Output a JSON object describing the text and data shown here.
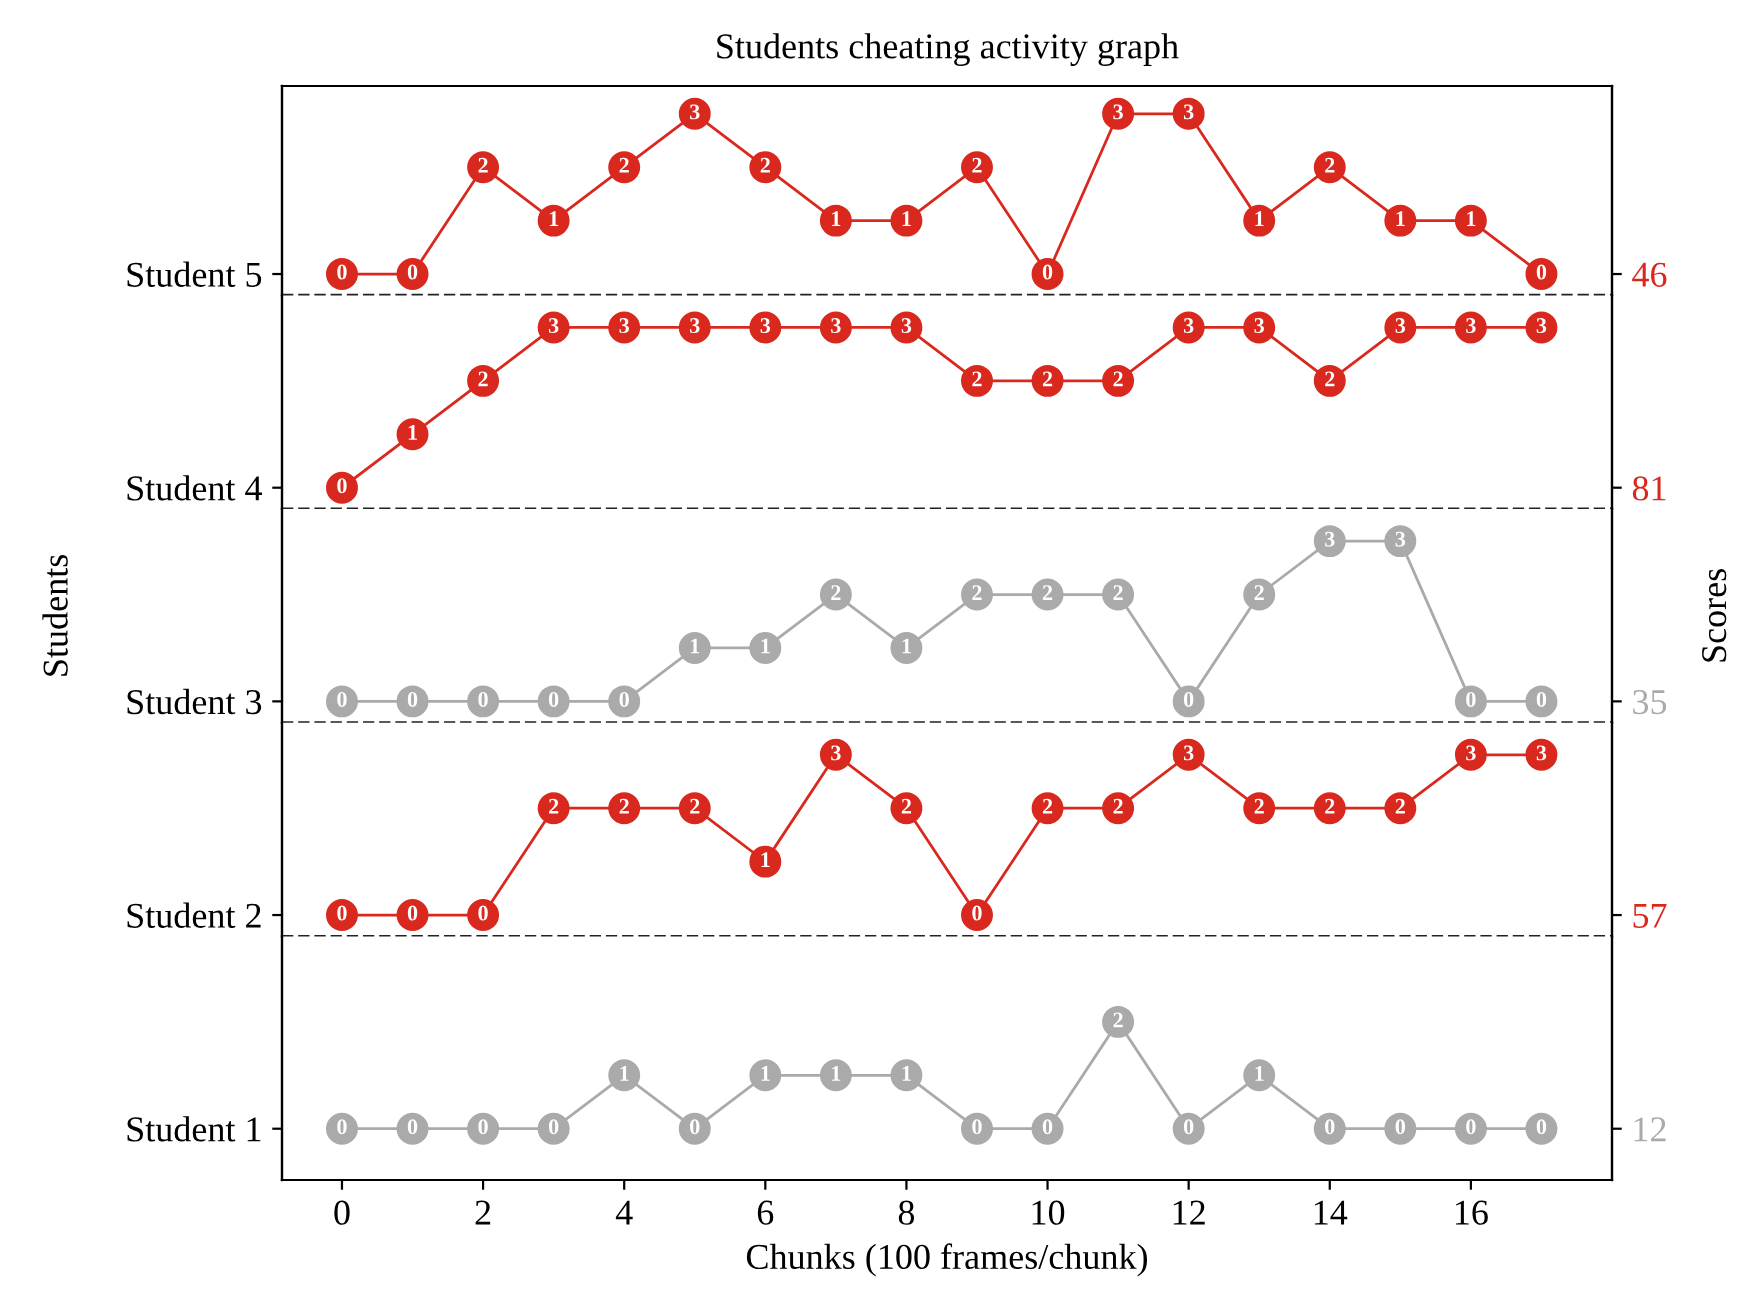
{
  "chart_data": [
    {
      "type": "line",
      "title": "Students cheating activity graph",
      "x": [
        0,
        1,
        2,
        3,
        4,
        5,
        6,
        7,
        8,
        9,
        10,
        11,
        12,
        13,
        14,
        15,
        16,
        17
      ],
      "xlim": [
        -0.85,
        18.0
      ],
      "ylim": [
        -0.4,
        3.52
      ],
      "tick_labels": false,
      "marker": "circle",
      "line_style": "solid",
      "data_labels": true,
      "annotations": [
        "Student 5",
        "46"
      ],
      "series": [
        {
          "color": "#d9281e",
          "values": [
            0,
            0,
            2,
            1,
            2,
            3,
            2,
            1,
            1,
            2,
            0,
            3,
            3,
            1,
            2,
            1,
            1,
            0
          ]
        }
      ],
      "ref_lines": [
        {
          "axis": "y",
          "value": -0.4,
          "line_style": "dashed",
          "color": "#222222"
        }
      ]
    },
    {
      "type": "line",
      "x": [
        0,
        1,
        2,
        3,
        4,
        5,
        6,
        7,
        8,
        9,
        10,
        11,
        12,
        13,
        14,
        15,
        16,
        17
      ],
      "xlim": [
        -0.85,
        18.0
      ],
      "ylim": [
        -0.4,
        3.6
      ],
      "tick_labels": false,
      "marker": "circle",
      "line_style": "solid",
      "data_labels": true,
      "annotations": [
        "Student 4",
        "81"
      ],
      "series": [
        {
          "color": "#d9281e",
          "values": [
            0,
            1,
            2,
            3,
            3,
            3,
            3,
            3,
            3,
            2,
            2,
            2,
            3,
            3,
            2,
            3,
            3,
            3
          ]
        }
      ],
      "ref_lines": [
        {
          "axis": "y",
          "value": -0.4,
          "line_style": "dashed",
          "color": "#222222"
        }
      ]
    },
    {
      "type": "line",
      "ylabel": "Students",
      "y2label": "Scores",
      "x": [
        0,
        1,
        2,
        3,
        4,
        5,
        6,
        7,
        8,
        9,
        10,
        11,
        12,
        13,
        14,
        15,
        16,
        17
      ],
      "xlim": [
        -0.85,
        18.0
      ],
      "ylim": [
        -0.4,
        3.6
      ],
      "tick_labels": false,
      "marker": "circle",
      "line_style": "solid",
      "data_labels": true,
      "annotations": [
        "Student 3",
        "35"
      ],
      "series": [
        {
          "color": "#aaaaaa",
          "values": [
            0,
            0,
            0,
            0,
            0,
            1,
            1,
            2,
            1,
            2,
            2,
            2,
            0,
            2,
            3,
            3,
            0,
            0
          ]
        }
      ],
      "ref_lines": [
        {
          "axis": "y",
          "value": -0.4,
          "line_style": "dashed",
          "color": "#222222"
        }
      ]
    },
    {
      "type": "line",
      "x": [
        0,
        1,
        2,
        3,
        4,
        5,
        6,
        7,
        8,
        9,
        10,
        11,
        12,
        13,
        14,
        15,
        16,
        17
      ],
      "xlim": [
        -0.85,
        18.0
      ],
      "ylim": [
        -0.4,
        3.6
      ],
      "tick_labels": false,
      "marker": "circle",
      "line_style": "solid",
      "data_labels": true,
      "annotations": [
        "Student 2",
        "57"
      ],
      "series": [
        {
          "color": "#d9281e",
          "values": [
            0,
            0,
            0,
            2,
            2,
            2,
            1,
            3,
            2,
            0,
            2,
            2,
            3,
            2,
            2,
            2,
            3,
            3
          ]
        }
      ],
      "ref_lines": [
        {
          "axis": "y",
          "value": -0.4,
          "line_style": "dashed",
          "color": "#222222"
        }
      ]
    },
    {
      "type": "line",
      "xlabel": "Chunks (100 frames/chunk)",
      "x": [
        0,
        1,
        2,
        3,
        4,
        5,
        6,
        7,
        8,
        9,
        10,
        11,
        12,
        13,
        14,
        15,
        16,
        17
      ],
      "xlim": [
        -0.85,
        18.0
      ],
      "xticks": [
        0,
        2,
        4,
        6,
        8,
        10,
        12,
        14,
        16
      ],
      "ylim": [
        -0.96,
        3.6
      ],
      "tick_labels": "x",
      "marker": "circle",
      "line_style": "solid",
      "data_labels": true,
      "annotations": [
        "Student 1",
        "12"
      ],
      "series": [
        {
          "color": "#aaaaaa",
          "values": [
            0,
            0,
            0,
            0,
            1,
            0,
            1,
            1,
            1,
            0,
            0,
            2,
            0,
            1,
            0,
            0,
            0,
            0
          ]
        }
      ]
    }
  ]
}
